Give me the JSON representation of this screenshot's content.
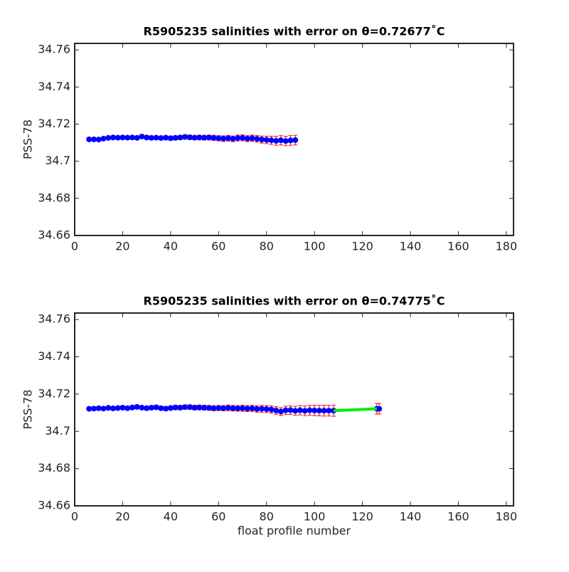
{
  "chart_data": [
    {
      "type": "errorbar",
      "title": "R5905235 salinities with error on θ=0.72677˚C",
      "ylabel": "PSS-78",
      "xlim": [
        0,
        183
      ],
      "xticks": [
        0,
        20,
        40,
        60,
        80,
        100,
        120,
        140,
        160,
        180
      ],
      "ylim": [
        34.66,
        34.7635
      ],
      "yticks": [
        34.66,
        34.68,
        34.7,
        34.72,
        34.74,
        34.76
      ],
      "series": [
        {
          "color": "#0000ff",
          "error_color": "#ff0000",
          "x": [
            6,
            8,
            10,
            12,
            14,
            16,
            18,
            20,
            22,
            24,
            26,
            28,
            30,
            32,
            34,
            36,
            38,
            40,
            42,
            44,
            46,
            48,
            50,
            52,
            54,
            56,
            58,
            60,
            62,
            64,
            66,
            68,
            70,
            72,
            74,
            76,
            78,
            80,
            82,
            84,
            86,
            88,
            90,
            92
          ],
          "values": [
            34.7118,
            34.7118,
            34.7117,
            34.7122,
            34.7126,
            34.7128,
            34.7127,
            34.7128,
            34.7127,
            34.7128,
            34.7126,
            34.7133,
            34.7128,
            34.7126,
            34.7127,
            34.7125,
            34.7127,
            34.7124,
            34.7126,
            34.7128,
            34.7131,
            34.7129,
            34.7127,
            34.7128,
            34.7127,
            34.7128,
            34.7126,
            34.7124,
            34.7122,
            34.7124,
            34.7121,
            34.7125,
            34.7126,
            34.7122,
            34.7124,
            34.7121,
            34.7117,
            34.7115,
            34.7113,
            34.711,
            34.7113,
            34.7109,
            34.7112,
            34.7114
          ],
          "errors": [
            0.0008,
            0.0008,
            0.0008,
            0.0008,
            0.0008,
            0.0009,
            0.0009,
            0.0009,
            0.0009,
            0.001,
            0.001,
            0.001,
            0.001,
            0.001,
            0.001,
            0.001,
            0.001,
            0.0011,
            0.0011,
            0.0011,
            0.0012,
            0.0012,
            0.0012,
            0.0013,
            0.0013,
            0.0013,
            0.0014,
            0.0014,
            0.0015,
            0.0015,
            0.0015,
            0.0016,
            0.0016,
            0.0016,
            0.0017,
            0.0018,
            0.0019,
            0.002,
            0.0022,
            0.0024,
            0.0025,
            0.0025,
            0.0026,
            0.0026
          ]
        }
      ]
    },
    {
      "type": "errorbar",
      "title": "R5905235 salinities with error on θ=0.74775˚C",
      "ylabel": "PSS-78",
      "xlabel": "float profile number",
      "xlim": [
        0,
        183
      ],
      "xticks": [
        0,
        20,
        40,
        60,
        80,
        100,
        120,
        140,
        160,
        180
      ],
      "ylim": [
        34.66,
        34.7635
      ],
      "yticks": [
        34.66,
        34.68,
        34.7,
        34.72,
        34.74,
        34.76
      ],
      "series": [
        {
          "color": "#0000ff",
          "error_color": "#ff0000",
          "x": [
            6,
            8,
            10,
            12,
            14,
            16,
            18,
            20,
            22,
            24,
            26,
            28,
            30,
            32,
            34,
            36,
            38,
            40,
            42,
            44,
            46,
            48,
            50,
            52,
            54,
            56,
            58,
            60,
            62,
            64,
            66,
            68,
            70,
            72,
            74,
            76,
            78,
            80,
            82,
            84,
            86,
            88,
            90,
            92,
            94,
            96,
            98,
            100,
            102,
            104,
            106,
            108,
            126,
            127
          ],
          "values": [
            34.7121,
            34.7122,
            34.7124,
            34.7122,
            34.7126,
            34.7123,
            34.7125,
            34.7127,
            34.7124,
            34.7128,
            34.7131,
            34.7127,
            34.7124,
            34.7127,
            34.7129,
            34.7124,
            34.7122,
            34.7125,
            34.7128,
            34.7127,
            34.713,
            34.713,
            34.7127,
            34.7128,
            34.7127,
            34.7126,
            34.7124,
            34.7125,
            34.7124,
            34.7126,
            34.7124,
            34.7123,
            34.7124,
            34.7122,
            34.7123,
            34.712,
            34.7121,
            34.7119,
            34.7117,
            34.7112,
            34.7106,
            34.7113,
            34.7114,
            34.711,
            34.7113,
            34.711,
            34.7113,
            34.7112,
            34.7111,
            34.7111,
            34.7111,
            34.7111,
            34.7121,
            34.7121
          ],
          "errors": [
            0.0009,
            0.0009,
            0.0009,
            0.0009,
            0.0009,
            0.001,
            0.001,
            0.001,
            0.001,
            0.001,
            0.001,
            0.001,
            0.001,
            0.0011,
            0.0011,
            0.0011,
            0.0011,
            0.0011,
            0.0012,
            0.0012,
            0.0012,
            0.0012,
            0.0013,
            0.0013,
            0.0013,
            0.0013,
            0.0014,
            0.0014,
            0.0014,
            0.0015,
            0.0015,
            0.0015,
            0.0016,
            0.0016,
            0.0016,
            0.0017,
            0.0018,
            0.0018,
            0.0019,
            0.002,
            0.0021,
            0.0022,
            0.0023,
            0.0024,
            0.0025,
            0.0026,
            0.0027,
            0.0028,
            0.0028,
            0.0029,
            0.0029,
            0.003,
            0.0028,
            0.0028
          ]
        },
        {
          "color": "#00ee00",
          "x": [
            108,
            126
          ],
          "values": [
            34.7111,
            34.7121
          ]
        }
      ]
    }
  ]
}
